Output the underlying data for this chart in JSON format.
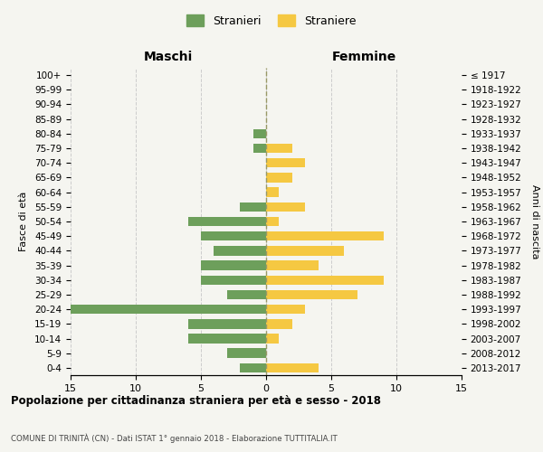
{
  "age_groups": [
    "0-4",
    "5-9",
    "10-14",
    "15-19",
    "20-24",
    "25-29",
    "30-34",
    "35-39",
    "40-44",
    "45-49",
    "50-54",
    "55-59",
    "60-64",
    "65-69",
    "70-74",
    "75-79",
    "80-84",
    "85-89",
    "90-94",
    "95-99",
    "100+"
  ],
  "birth_years": [
    "2013-2017",
    "2008-2012",
    "2003-2007",
    "1998-2002",
    "1993-1997",
    "1988-1992",
    "1983-1987",
    "1978-1982",
    "1973-1977",
    "1968-1972",
    "1963-1967",
    "1958-1962",
    "1953-1957",
    "1948-1952",
    "1943-1947",
    "1938-1942",
    "1933-1937",
    "1928-1932",
    "1923-1927",
    "1918-1922",
    "≤ 1917"
  ],
  "maschi": [
    2,
    3,
    6,
    6,
    15,
    3,
    5,
    5,
    4,
    5,
    6,
    2,
    0,
    0,
    0,
    1,
    1,
    0,
    0,
    0,
    0
  ],
  "femmine": [
    4,
    0,
    1,
    2,
    3,
    7,
    9,
    4,
    6,
    9,
    1,
    3,
    1,
    2,
    3,
    2,
    0,
    0,
    0,
    0,
    0
  ],
  "maschi_color": "#6d9f5b",
  "femmine_color": "#f5c842",
  "title": "Popolazione per cittadinanza straniera per età e sesso - 2018",
  "subtitle": "COMUNE DI TRINITÀ (CN) - Dati ISTAT 1° gennaio 2018 - Elaborazione TUTTITALIA.IT",
  "xlabel_left": "Maschi",
  "xlabel_right": "Femmine",
  "ylabel_left": "Fasce di età",
  "ylabel_right": "Anni di nascita",
  "legend_stranieri": "Stranieri",
  "legend_straniere": "Straniere",
  "xlim": 15,
  "background_color": "#f5f5f0",
  "grid_color": "#cccccc"
}
